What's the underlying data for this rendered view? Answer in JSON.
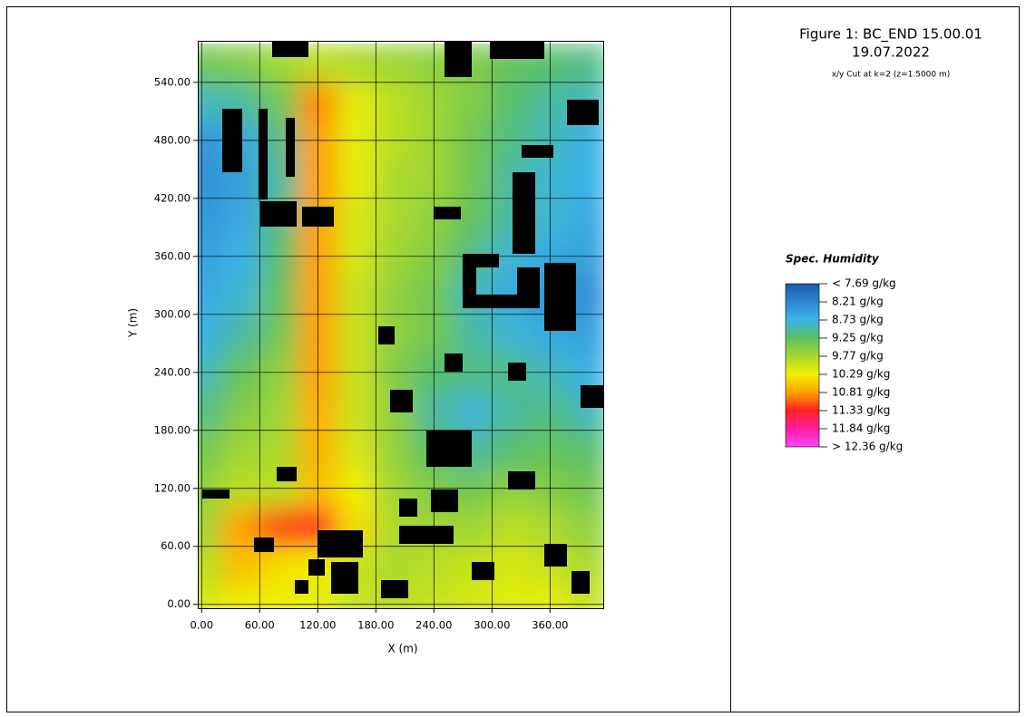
{
  "chart_data": {
    "type": "heatmap",
    "title": "Figure 1: BC_END 15.00.01",
    "subtitle": "19.07.2022",
    "annotation": "x/y Cut at k=2 (z=1.5000 m)",
    "x_label": "X (m)",
    "y_label": "Y (m)",
    "legend_title": "Spec. Humidity",
    "xlim": [
      -4,
      415
    ],
    "ylim": [
      -4,
      583
    ],
    "xticks": [
      {
        "value": 0,
        "label": "0.00"
      },
      {
        "value": 60,
        "label": "60.00"
      },
      {
        "value": 120,
        "label": "120.00"
      },
      {
        "value": 180,
        "label": "180.00"
      },
      {
        "value": 240,
        "label": "240.00"
      },
      {
        "value": 300,
        "label": "300.00"
      },
      {
        "value": 360,
        "label": "360.00"
      }
    ],
    "yticks": [
      {
        "value": 0,
        "label": "0.00"
      },
      {
        "value": 60,
        "label": "60.00"
      },
      {
        "value": 120,
        "label": "120.00"
      },
      {
        "value": 180,
        "label": "180.00"
      },
      {
        "value": 240,
        "label": "240.00"
      },
      {
        "value": 300,
        "label": "300.00"
      },
      {
        "value": 360,
        "label": "360.00"
      },
      {
        "value": 420,
        "label": "420.00"
      },
      {
        "value": 480,
        "label": "480.00"
      },
      {
        "value": 540,
        "label": "540.00"
      }
    ],
    "grid": true,
    "legend_position": "right",
    "levels": [
      {
        "value": 7.69,
        "label": "< 7.69 g/kg"
      },
      {
        "value": 8.21,
        "label": "8.21  g/kg"
      },
      {
        "value": 8.73,
        "label": "8.73  g/kg"
      },
      {
        "value": 9.25,
        "label": "9.25  g/kg"
      },
      {
        "value": 9.77,
        "label": "9.77  g/kg"
      },
      {
        "value": 10.29,
        "label": "10.29  g/kg"
      },
      {
        "value": 10.81,
        "label": "10.81  g/kg"
      },
      {
        "value": 11.33,
        "label": "11.33  g/kg"
      },
      {
        "value": 11.84,
        "label": "11.84  g/kg"
      },
      {
        "value": 12.36,
        "label": "> 12.36 g/kg"
      }
    ],
    "colors": [
      "#1c5aa8",
      "#2e86d0",
      "#3ab4e6",
      "#5cc060",
      "#a8d830",
      "#f0f000",
      "#ffa000",
      "#ff2020",
      "#ff20a0",
      "#ff40ff"
    ],
    "x": [
      0,
      40,
      80,
      120,
      160,
      200,
      240,
      280,
      320,
      360,
      400
    ],
    "y": [
      0,
      40,
      80,
      120,
      160,
      200,
      240,
      280,
      320,
      360,
      400,
      440,
      480,
      520,
      560
    ],
    "z": [
      [
        10.1,
        10.3,
        10.3,
        10.2,
        10.0,
        9.9,
        10.0,
        10.1,
        10.2,
        10.2,
        10.0
      ],
      [
        9.9,
        10.6,
        10.4,
        10.3,
        10.0,
        9.8,
        9.9,
        10.0,
        10.1,
        10.0,
        9.8
      ],
      [
        9.7,
        10.8,
        11.2,
        11.3,
        10.4,
        9.8,
        9.7,
        9.7,
        9.9,
        9.8,
        9.6
      ],
      [
        9.6,
        9.9,
        9.9,
        10.6,
        10.3,
        9.7,
        9.5,
        9.4,
        9.6,
        9.5,
        9.4
      ],
      [
        9.4,
        9.7,
        9.8,
        10.7,
        10.1,
        9.6,
        9.2,
        9.0,
        9.2,
        9.3,
        9.2
      ],
      [
        9.1,
        9.5,
        9.7,
        10.7,
        10.0,
        9.6,
        9.0,
        8.8,
        9.0,
        9.1,
        8.9
      ],
      [
        8.9,
        9.3,
        9.6,
        10.8,
        10.0,
        9.5,
        9.2,
        9.1,
        9.1,
        8.9,
        8.7
      ],
      [
        8.7,
        9.0,
        9.4,
        10.8,
        10.0,
        9.6,
        9.4,
        9.0,
        8.8,
        8.6,
        8.5
      ],
      [
        8.6,
        8.8,
        9.3,
        10.8,
        10.0,
        9.6,
        9.4,
        8.9,
        8.6,
        8.4,
        8.3
      ],
      [
        8.5,
        8.7,
        9.2,
        10.8,
        10.1,
        9.7,
        9.5,
        9.1,
        8.8,
        8.6,
        8.5
      ],
      [
        8.4,
        8.6,
        9.1,
        10.8,
        10.1,
        9.8,
        9.6,
        9.3,
        9.0,
        8.8,
        8.6
      ],
      [
        8.3,
        8.5,
        9.0,
        10.8,
        10.2,
        9.8,
        9.7,
        9.4,
        9.0,
        8.8,
        8.7
      ],
      [
        8.4,
        8.6,
        9.1,
        10.8,
        10.2,
        9.9,
        9.7,
        9.4,
        9.1,
        8.9,
        8.7
      ],
      [
        8.9,
        9.0,
        9.4,
        10.9,
        10.2,
        9.9,
        9.7,
        9.5,
        9.2,
        9.0,
        8.9
      ],
      [
        9.4,
        9.5,
        9.7,
        9.9,
        9.8,
        9.7,
        9.6,
        9.5,
        9.3,
        9.2,
        9.1
      ]
    ]
  }
}
